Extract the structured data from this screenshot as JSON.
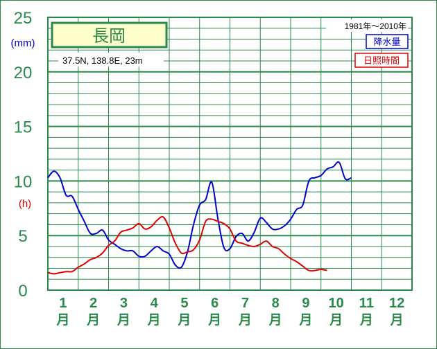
{
  "station": {
    "name": "長岡",
    "location": "37.5N,  138.8E,  23m"
  },
  "period": "1981年～2010年",
  "axis": {
    "unit_precip": "(mm)",
    "unit_sun": "(h)"
  },
  "legend": {
    "precip": "降水量",
    "sun": "日照時間"
  },
  "colors": {
    "grid": "#2a8a4a",
    "precip": "#0000cc",
    "sun": "#dd0000",
    "axis_text": "#2a8a4a",
    "title_bg": "#ffffcc"
  },
  "chart_data": {
    "type": "line",
    "title": "長岡",
    "y_ticks": [
      "0",
      "5",
      "10",
      "15",
      "20",
      "25"
    ],
    "ylim": [
      0,
      25
    ],
    "x_range": [
      0.5,
      12.5
    ],
    "months": [
      {
        "num": "1",
        "unit": "月"
      },
      {
        "num": "2",
        "unit": "月"
      },
      {
        "num": "3",
        "unit": "月"
      },
      {
        "num": "4",
        "unit": "月"
      },
      {
        "num": "5",
        "unit": "月"
      },
      {
        "num": "6",
        "unit": "月"
      },
      {
        "num": "7",
        "unit": "月"
      },
      {
        "num": "8",
        "unit": "月"
      },
      {
        "num": "9",
        "unit": "月"
      },
      {
        "num": "10",
        "unit": "月"
      },
      {
        "num": "11",
        "unit": "月"
      },
      {
        "num": "12",
        "unit": "月"
      }
    ],
    "series": [
      {
        "name": "降水量",
        "color": "#0000cc",
        "points": [
          [
            0.5,
            10.3
          ],
          [
            0.7,
            10.9
          ],
          [
            0.9,
            10.3
          ],
          [
            1.1,
            8.7
          ],
          [
            1.3,
            8.6
          ],
          [
            1.5,
            7.4
          ],
          [
            1.7,
            6.3
          ],
          [
            1.9,
            5.2
          ],
          [
            2.1,
            5.2
          ],
          [
            2.3,
            5.5
          ],
          [
            2.5,
            4.6
          ],
          [
            2.7,
            4.2
          ],
          [
            2.9,
            3.8
          ],
          [
            3.1,
            3.6
          ],
          [
            3.3,
            3.6
          ],
          [
            3.5,
            3.1
          ],
          [
            3.7,
            3.1
          ],
          [
            3.9,
            3.6
          ],
          [
            4.1,
            4.0
          ],
          [
            4.3,
            3.6
          ],
          [
            4.5,
            3.3
          ],
          [
            4.7,
            2.3
          ],
          [
            4.9,
            2.1
          ],
          [
            5.1,
            3.5
          ],
          [
            5.3,
            6.0
          ],
          [
            5.5,
            7.8
          ],
          [
            5.7,
            8.3
          ],
          [
            5.9,
            9.9
          ],
          [
            6.1,
            6.6
          ],
          [
            6.3,
            3.9
          ],
          [
            6.5,
            3.8
          ],
          [
            6.7,
            4.9
          ],
          [
            6.9,
            5.2
          ],
          [
            7.1,
            4.5
          ],
          [
            7.3,
            5.3
          ],
          [
            7.5,
            6.6
          ],
          [
            7.7,
            6.2
          ],
          [
            7.9,
            5.6
          ],
          [
            8.1,
            5.6
          ],
          [
            8.3,
            5.9
          ],
          [
            8.5,
            6.5
          ],
          [
            8.7,
            7.4
          ],
          [
            8.9,
            7.8
          ],
          [
            9.1,
            10.0
          ],
          [
            9.3,
            10.3
          ],
          [
            9.5,
            10.5
          ],
          [
            9.7,
            11.1
          ],
          [
            9.9,
            11.3
          ],
          [
            10.1,
            11.7
          ],
          [
            10.3,
            10.2
          ],
          [
            10.5,
            10.3
          ]
        ]
      },
      {
        "name": "日照時間",
        "color": "#dd0000",
        "points": [
          [
            0.5,
            1.6
          ],
          [
            0.7,
            1.5
          ],
          [
            0.9,
            1.6
          ],
          [
            1.1,
            1.7
          ],
          [
            1.3,
            1.7
          ],
          [
            1.5,
            2.1
          ],
          [
            1.7,
            2.4
          ],
          [
            1.9,
            2.8
          ],
          [
            2.1,
            3.0
          ],
          [
            2.3,
            3.4
          ],
          [
            2.5,
            4.1
          ],
          [
            2.7,
            4.5
          ],
          [
            2.9,
            5.3
          ],
          [
            3.1,
            5.5
          ],
          [
            3.3,
            5.7
          ],
          [
            3.5,
            6.1
          ],
          [
            3.7,
            5.6
          ],
          [
            3.9,
            5.8
          ],
          [
            4.1,
            6.4
          ],
          [
            4.3,
            6.7
          ],
          [
            4.5,
            5.7
          ],
          [
            4.7,
            4.3
          ],
          [
            4.9,
            3.4
          ],
          [
            5.1,
            3.5
          ],
          [
            5.3,
            3.7
          ],
          [
            5.5,
            4.6
          ],
          [
            5.7,
            6.3
          ],
          [
            5.9,
            6.5
          ],
          [
            6.1,
            6.3
          ],
          [
            6.3,
            6.1
          ],
          [
            6.5,
            5.6
          ],
          [
            6.7,
            4.5
          ],
          [
            6.9,
            4.3
          ],
          [
            7.1,
            4.1
          ],
          [
            7.3,
            4.0
          ],
          [
            7.5,
            4.2
          ],
          [
            7.7,
            4.5
          ],
          [
            7.9,
            4.0
          ],
          [
            8.1,
            3.8
          ],
          [
            8.3,
            3.3
          ],
          [
            8.5,
            2.9
          ],
          [
            8.7,
            2.6
          ],
          [
            8.9,
            2.2
          ],
          [
            9.1,
            1.8
          ],
          [
            9.3,
            1.8
          ],
          [
            9.5,
            1.9
          ],
          [
            9.7,
            1.8
          ]
        ]
      }
    ]
  }
}
